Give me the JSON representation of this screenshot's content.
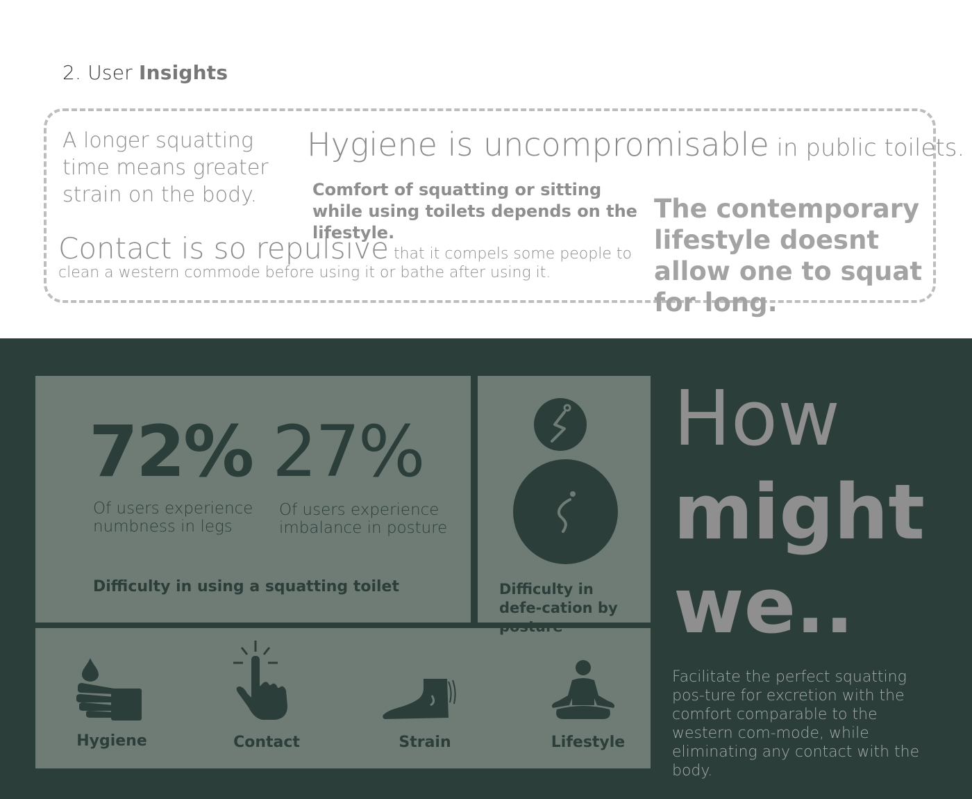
{
  "section": {
    "title_prefix": "2. User",
    "title_bold": "Insights"
  },
  "insights": {
    "strain": "A longer squatting time means greater strain on the body.",
    "hygiene_big": "Hygiene is uncompromisable",
    "hygiene_small": " in public toilets.",
    "comfort": "Comfort of squatting or sitting while using toilets depends on the lifestyle.",
    "contemporary": "The contemporary lifestyle doesnt allow one to squat for long.",
    "contact_big": "Contact is so repulsive",
    "contact_small": " that it compels some people to clean a western commode before using it or bathe after using it."
  },
  "stats": [
    {
      "value": "72%",
      "desc": "Of users experience numbness in legs"
    },
    {
      "value": "27%",
      "desc": "Of users experience imbalance in posture"
    }
  ],
  "panels": {
    "squat_caption": "Difficulty in using a squatting toilet",
    "posture_caption": "Difficulty in defe-cation by posture"
  },
  "icons": [
    {
      "name": "hygiene-icon",
      "label": "Hygiene"
    },
    {
      "name": "contact-icon",
      "label": "Contact"
    },
    {
      "name": "strain-icon",
      "label": "Strain"
    },
    {
      "name": "lifestyle-icon",
      "label": "Lifestyle"
    }
  ],
  "hmw": {
    "line1": "How",
    "line2": "might",
    "line3": "we..",
    "description": "Facilitate the perfect squatting pos-ture for excretion with the comfort comparable to the western com-mode, while eliminating any contact with the body."
  },
  "colors": {
    "dark_green": "#2c3e39",
    "panel_gray": "#6f7c76",
    "text_gray": "#8f8f8f"
  }
}
